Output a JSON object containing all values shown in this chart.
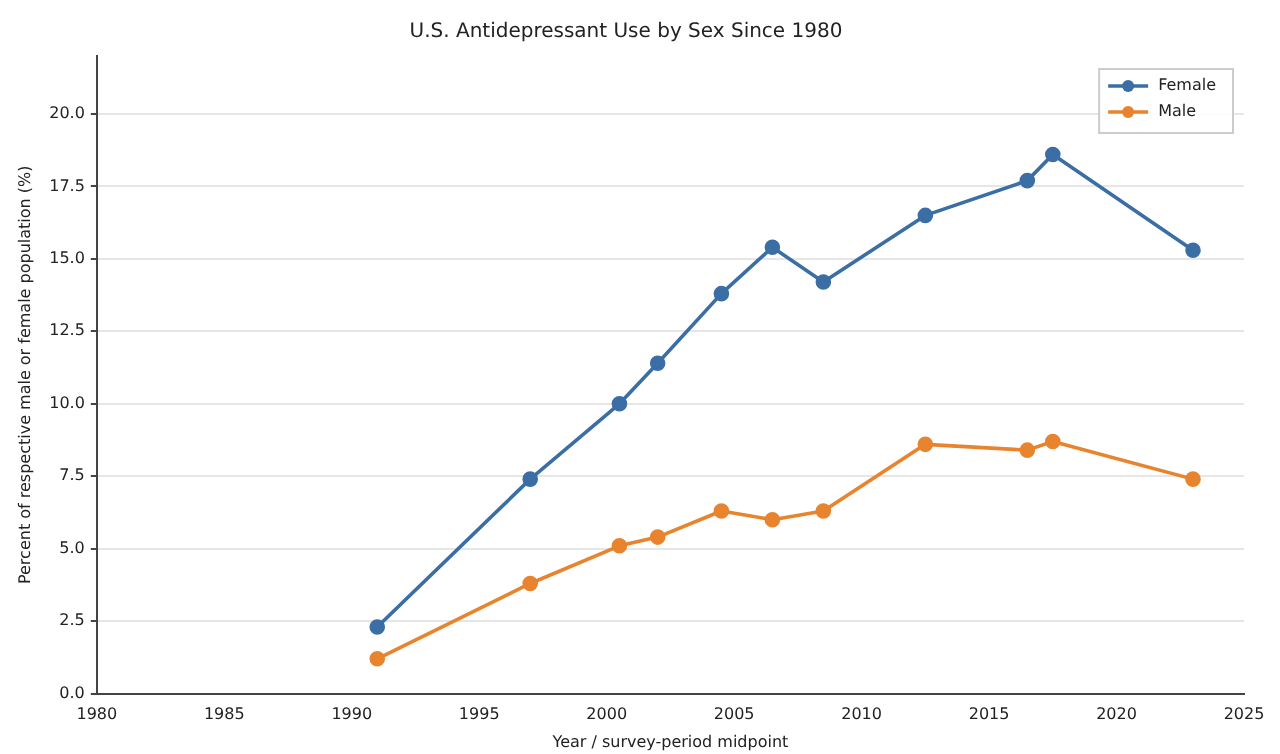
{
  "chart_data": {
    "type": "line",
    "title": "U.S. Antidepressant Use by Sex Since 1980",
    "xlabel": "Year / survey-period midpoint",
    "ylabel": "Percent of respective male or female population (%)",
    "x": [
      1991,
      1997,
      2000.5,
      2002,
      2004.5,
      2006.5,
      2008.5,
      2012.5,
      2016.5,
      2017.5,
      2023
    ],
    "series": [
      {
        "name": "Female",
        "color": "#3a6ea5",
        "values": [
          2.3,
          7.4,
          10.0,
          11.4,
          13.8,
          15.4,
          14.2,
          16.5,
          17.7,
          18.6,
          15.3
        ]
      },
      {
        "name": "Male",
        "color": "#e8832e",
        "values": [
          1.2,
          3.8,
          5.1,
          5.4,
          6.3,
          6.0,
          6.3,
          8.6,
          8.4,
          8.7,
          7.4
        ]
      }
    ],
    "xlim": [
      1980,
      2025
    ],
    "xticks": [
      1980,
      1985,
      1990,
      1995,
      2000,
      2005,
      2010,
      2015,
      2020,
      2025
    ],
    "ylim": [
      0,
      22
    ],
    "yticks": [
      {
        "value": 0,
        "label": "0.0"
      },
      {
        "value": 2.5,
        "label": "2.5"
      },
      {
        "value": 5,
        "label": "5.0"
      },
      {
        "value": 7.5,
        "label": "7.5"
      },
      {
        "value": 10,
        "label": "10.0"
      },
      {
        "value": 12.5,
        "label": "12.5"
      },
      {
        "value": 15,
        "label": "15.0"
      },
      {
        "value": 17.5,
        "label": "17.5"
      },
      {
        "value": 20,
        "label": "20.0"
      }
    ],
    "grid": "y",
    "legend": "top right",
    "marker": "circle",
    "line_style": "solid"
  }
}
